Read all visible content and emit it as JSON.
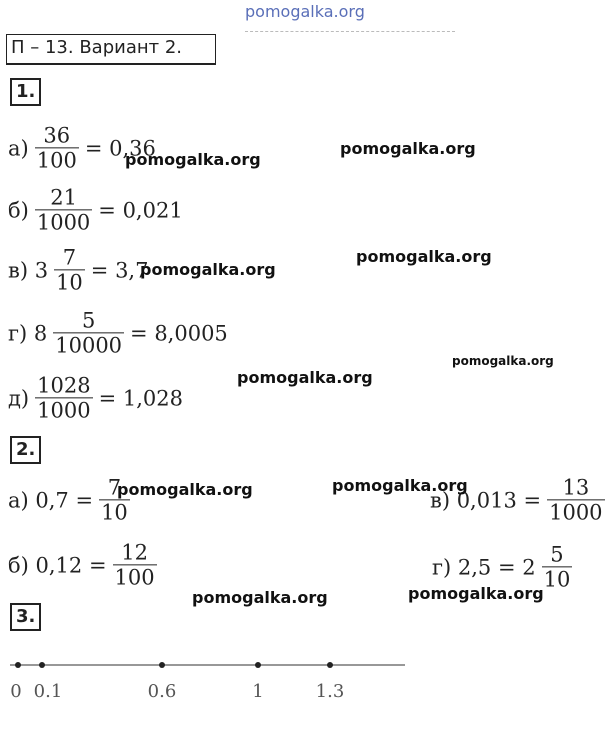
{
  "header": {
    "title": "П – 13. Вариант 2."
  },
  "tasks": [
    {
      "number": "1.",
      "items": [
        {
          "parts": [
            {
              "text": "а)"
            },
            {
              "num": "36",
              "den": "100"
            },
            {
              "text": "= 0,36"
            }
          ]
        },
        {
          "parts": [
            {
              "text": "б)"
            },
            {
              "num": "21",
              "den": "1000"
            },
            {
              "text": "= 0,021"
            }
          ]
        },
        {
          "parts": [
            {
              "text": "в) 3"
            },
            {
              "num": "7",
              "den": "10"
            },
            {
              "text": "= 3,7"
            }
          ]
        },
        {
          "parts": [
            {
              "text": "г) 8"
            },
            {
              "num": "5",
              "den": "10000"
            },
            {
              "text": "= 8,0005"
            }
          ]
        },
        {
          "parts": [
            {
              "text": "д)"
            },
            {
              "num": "1028",
              "den": "1000"
            },
            {
              "text": "= 1,028"
            }
          ]
        }
      ]
    },
    {
      "number": "2.",
      "items": [
        {
          "parts": [
            {
              "text": "а) 0,7 ="
            },
            {
              "num": "7",
              "den": "10"
            }
          ]
        },
        {
          "parts": [
            {
              "text": "б) 0,12 ="
            },
            {
              "num": "12",
              "den": "100"
            }
          ]
        },
        {
          "parts": [
            {
              "text": "в) 0,013 ="
            },
            {
              "num": "13",
              "den": "1000"
            }
          ]
        },
        {
          "parts": [
            {
              "text": "г) 2,5 = 2"
            },
            {
              "num": "5",
              "den": "10"
            }
          ]
        }
      ]
    },
    {
      "number": "3.",
      "number_line": {
        "points": [
          0,
          0.1,
          0.6,
          1,
          1.3
        ]
      }
    }
  ],
  "watermarks": [
    "pomogalka.org",
    "pomogalka.org",
    "pomogalka.org",
    "pomogalka.org",
    "pomogalka.org",
    "pomogalka.org",
    "pomogalka.org",
    "pomogalka.org",
    "pomogalka.org",
    "pomogalka.org",
    "pomogalka.org"
  ]
}
